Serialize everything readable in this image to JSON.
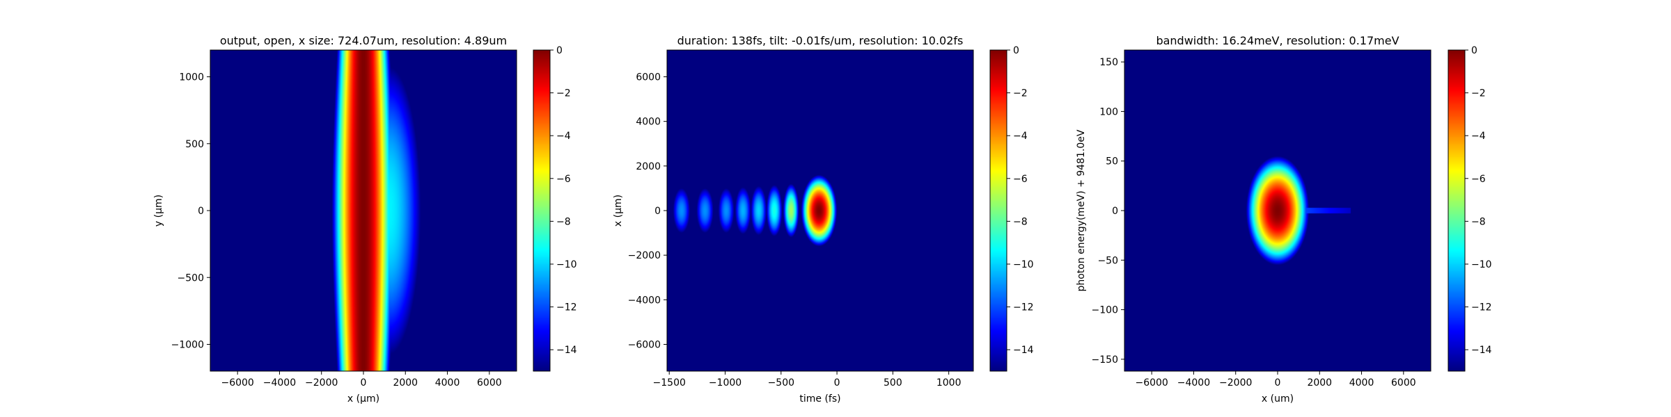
{
  "chart_data": [
    {
      "type": "heatmap",
      "title": "output, open, x size: 724.07um, resolution: 4.89um",
      "xlabel": "x (μm)",
      "ylabel": "y (μm)",
      "xlim": [
        -7300,
        7300
      ],
      "ylim": [
        -1200,
        1200
      ],
      "xticks": [
        -6000,
        -4000,
        -2000,
        0,
        2000,
        4000,
        6000
      ],
      "yticks": [
        -1000,
        -500,
        0,
        500,
        1000
      ],
      "colorbar": {
        "ticks": [
          0,
          -2,
          -4,
          -6,
          -8,
          -10,
          -12,
          -14
        ],
        "range": [
          -15,
          0
        ],
        "colormap": "jet"
      },
      "field": {
        "shape": "beam",
        "center_x": 0,
        "core_halfwidth_x": 1500,
        "bulge_x": 1600,
        "bulge_halfheight_y": 1300
      }
    },
    {
      "type": "heatmap",
      "title": "duration: 138fs, tilt: -0.01fs/um, resolution: 10.02fs",
      "xlabel": "time (fs)",
      "ylabel": "x (μm)",
      "xlim": [
        -1520,
        1220
      ],
      "ylim": [
        -7200,
        7200
      ],
      "xticks": [
        -1500,
        -1000,
        -500,
        0,
        500,
        1000
      ],
      "yticks": [
        -6000,
        -4000,
        -2000,
        0,
        2000,
        4000,
        6000
      ],
      "colorbar": {
        "ticks": [
          0,
          -2,
          -4,
          -6,
          -8,
          -10,
          -12,
          -14
        ],
        "range": [
          -15,
          0
        ],
        "colormap": "jet"
      },
      "field": {
        "shape": "pulse-train",
        "main_peak": {
          "t": -160,
          "x": 0,
          "rt": 160,
          "rx": 1600,
          "level": 0
        },
        "side_lobes": [
          {
            "t": -410,
            "x": 0,
            "rt": 70,
            "rx": 1200,
            "level": -7
          },
          {
            "t": -560,
            "x": 0,
            "rt": 70,
            "rx": 1150,
            "level": -9
          },
          {
            "t": -700,
            "x": 0,
            "rt": 70,
            "rx": 1100,
            "level": -10
          },
          {
            "t": -840,
            "x": 0,
            "rt": 70,
            "rx": 1050,
            "level": -10.5
          },
          {
            "t": -990,
            "x": 0,
            "rt": 70,
            "rx": 1000,
            "level": -11
          },
          {
            "t": -1180,
            "x": 0,
            "rt": 75,
            "rx": 1000,
            "level": -11
          },
          {
            "t": -1390,
            "x": 0,
            "rt": 75,
            "rx": 1000,
            "level": -11
          }
        ]
      }
    },
    {
      "type": "heatmap",
      "title": "bandwidth: 16.24meV, resolution: 0.17meV",
      "xlabel": "x (um)",
      "ylabel": "photon energy(meV) + 9481.0eV",
      "xlim": [
        -7300,
        7300
      ],
      "ylim": [
        -162,
        162
      ],
      "xticks": [
        -6000,
        -4000,
        -2000,
        0,
        2000,
        4000,
        6000
      ],
      "yticks": [
        -150,
        -100,
        -50,
        0,
        50,
        100,
        150
      ],
      "colorbar": {
        "ticks": [
          0,
          -2,
          -4,
          -6,
          -8,
          -10,
          -12,
          -14
        ],
        "range": [
          -15,
          0
        ],
        "colormap": "jet"
      },
      "field": {
        "shape": "ellipse",
        "center_x": 0,
        "center_y": 0,
        "rx": 1500,
        "ry": 55,
        "streak_end_x": 3500
      }
    }
  ]
}
